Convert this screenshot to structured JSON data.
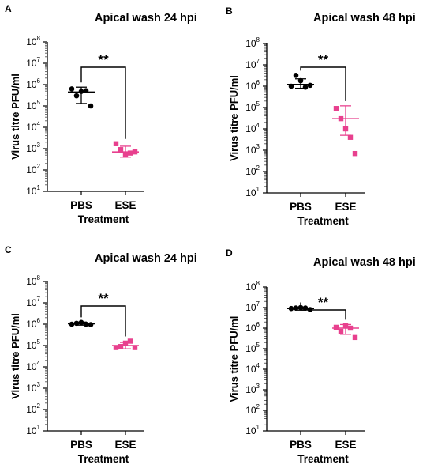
{
  "colors": {
    "pbs": "#000000",
    "ese": "#e8408e"
  },
  "chart_data": [
    {
      "panel": "A",
      "type": "scatter",
      "title": "Apical wash 24 hpi",
      "xlabel": "Treatment",
      "ylabel": "Virus titre PFU/ml",
      "yscale": "log",
      "ylim": [
        10,
        100000000
      ],
      "yticks": [
        {
          "base": "10",
          "exp": "1"
        },
        {
          "base": "10",
          "exp": "2"
        },
        {
          "base": "10",
          "exp": "3"
        },
        {
          "base": "10",
          "exp": "4"
        },
        {
          "base": "10",
          "exp": "5"
        },
        {
          "base": "10",
          "exp": "6"
        },
        {
          "base": "10",
          "exp": "7"
        },
        {
          "base": "10",
          "exp": "8"
        }
      ],
      "categories": [
        "PBS",
        "ESE"
      ],
      "groups": [
        {
          "category": "PBS",
          "mean": 450000,
          "sd_low": 130000,
          "sd_high": 760000,
          "points": [
            630000,
            300000,
            480000,
            520000,
            100000
          ],
          "marker": "circle"
        },
        {
          "category": "ESE",
          "mean": 700,
          "sd_low": 400,
          "sd_high": 1300,
          "points": [
            1700,
            900,
            500,
            620,
            700
          ],
          "marker": "square"
        }
      ],
      "significance": "**"
    },
    {
      "panel": "B",
      "type": "scatter",
      "title": "Apical wash 48 hpi",
      "xlabel": "Treatment",
      "ylabel": "Virus titre PFU/ml",
      "yscale": "log",
      "ylim": [
        10,
        100000000
      ],
      "yticks": [
        {
          "base": "10",
          "exp": "1"
        },
        {
          "base": "10",
          "exp": "2"
        },
        {
          "base": "10",
          "exp": "3"
        },
        {
          "base": "10",
          "exp": "4"
        },
        {
          "base": "10",
          "exp": "5"
        },
        {
          "base": "10",
          "exp": "6"
        },
        {
          "base": "10",
          "exp": "7"
        },
        {
          "base": "10",
          "exp": "8"
        }
      ],
      "categories": [
        "PBS",
        "ESE"
      ],
      "groups": [
        {
          "category": "PBS",
          "mean": 1200000,
          "sd_low": 800000,
          "sd_high": 2200000,
          "points": [
            1000000,
            3200000,
            1800000,
            900000,
            1100000
          ],
          "marker": "circle"
        },
        {
          "category": "ESE",
          "mean": 30000,
          "sd_low": 5000,
          "sd_high": 120000,
          "points": [
            90000,
            30000,
            10000,
            4000,
            700
          ],
          "marker": "square"
        }
      ],
      "significance": "**"
    },
    {
      "panel": "C",
      "type": "scatter",
      "title": "Apical wash 24 hpi",
      "xlabel": "Treatment",
      "ylabel": "Virus titre PFU/ml",
      "yscale": "log",
      "ylim": [
        10,
        100000000
      ],
      "yticks": [
        {
          "base": "10",
          "exp": "1"
        },
        {
          "base": "10",
          "exp": "2"
        },
        {
          "base": "10",
          "exp": "3"
        },
        {
          "base": "10",
          "exp": "4"
        },
        {
          "base": "10",
          "exp": "5"
        },
        {
          "base": "10",
          "exp": "6"
        },
        {
          "base": "10",
          "exp": "7"
        },
        {
          "base": "10",
          "exp": "8"
        }
      ],
      "categories": [
        "PBS",
        "ESE"
      ],
      "groups": [
        {
          "category": "PBS",
          "mean": 1050000,
          "sd_low": 900000,
          "sd_high": 1250000,
          "points": [
            1000000,
            1100000,
            1200000,
            1000000,
            950000
          ],
          "marker": "circle"
        },
        {
          "category": "ESE",
          "mean": 100000,
          "sd_low": 70000,
          "sd_high": 140000,
          "points": [
            80000,
            90000,
            130000,
            160000,
            80000
          ],
          "marker": "square"
        }
      ],
      "significance": "**"
    },
    {
      "panel": "D",
      "type": "scatter",
      "title": "Apical wash 48 hpi",
      "xlabel": "Treatment",
      "ylabel": "Virus titre PFU/ml",
      "yscale": "log",
      "ylim": [
        10,
        100000000
      ],
      "yticks": [
        {
          "base": "10",
          "exp": "1"
        },
        {
          "base": "10",
          "exp": "2"
        },
        {
          "base": "10",
          "exp": "3"
        },
        {
          "base": "10",
          "exp": "4"
        },
        {
          "base": "10",
          "exp": "5"
        },
        {
          "base": "10",
          "exp": "6"
        },
        {
          "base": "10",
          "exp": "7"
        },
        {
          "base": "10",
          "exp": "8"
        }
      ],
      "categories": [
        "PBS",
        "ESE"
      ],
      "groups": [
        {
          "category": "PBS",
          "mean": 9000000,
          "sd_low": 7500000,
          "sd_high": 10500000,
          "points": [
            9000000,
            9500000,
            10000000,
            9500000,
            8000000
          ],
          "marker": "circle"
        },
        {
          "category": "ESE",
          "mean": 1000000,
          "sd_low": 500000,
          "sd_high": 1500000,
          "points": [
            1100000,
            700000,
            1300000,
            1000000,
            350000
          ],
          "marker": "square"
        }
      ],
      "significance": "**"
    }
  ]
}
